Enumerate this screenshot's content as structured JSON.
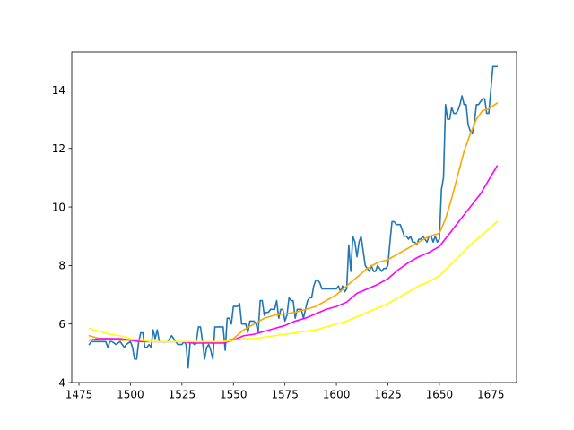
{
  "chart_data": {
    "type": "line",
    "title": "",
    "xlabel": "",
    "ylabel": "",
    "xlim": [
      1471.5,
      1687.5
    ],
    "ylim": [
      4,
      15.3
    ],
    "grid": false,
    "legend": "none",
    "x_ticks": [
      1475,
      1500,
      1525,
      1550,
      1575,
      1600,
      1625,
      1650,
      1675
    ],
    "x_tick_labels": [
      "1475",
      "1500",
      "1525",
      "1550",
      "1575",
      "1600",
      "1625",
      "1650",
      "1675"
    ],
    "y_ticks": [
      4,
      6,
      8,
      10,
      12,
      14
    ],
    "y_tick_labels": [
      "4",
      "6",
      "8",
      "10",
      "12",
      "14"
    ],
    "series": [
      {
        "color": "#1f77b4",
        "x": [
          1480,
          1481,
          1482,
          1484,
          1486,
          1488,
          1489,
          1490,
          1491,
          1493,
          1495,
          1497,
          1498,
          1500,
          1501,
          1502,
          1503,
          1504,
          1505,
          1506,
          1507,
          1508,
          1509,
          1510,
          1511,
          1512,
          1513,
          1514,
          1515,
          1516,
          1518,
          1520,
          1522,
          1523,
          1524,
          1525,
          1526,
          1527,
          1528,
          1529,
          1530,
          1531,
          1532,
          1533,
          1534,
          1535,
          1536,
          1537,
          1538,
          1539,
          1540,
          1541,
          1542,
          1543,
          1545,
          1546,
          1547,
          1548,
          1549,
          1550,
          1551,
          1552,
          1553,
          1554,
          1555,
          1556,
          1557,
          1558,
          1559,
          1560,
          1561,
          1562,
          1563,
          1564,
          1565,
          1566,
          1567,
          1568,
          1569,
          1570,
          1571,
          1572,
          1573,
          1574,
          1575,
          1576,
          1577,
          1578,
          1579,
          1580,
          1581,
          1582,
          1583,
          1584,
          1585,
          1586,
          1587,
          1588,
          1589,
          1590,
          1591,
          1592,
          1593,
          1594,
          1595,
          1596,
          1597,
          1598,
          1599,
          1600,
          1601,
          1602,
          1603,
          1604,
          1605,
          1606,
          1607,
          1608,
          1609,
          1610,
          1611,
          1612,
          1613,
          1614,
          1615,
          1616,
          1617,
          1618,
          1619,
          1620,
          1621,
          1622,
          1623,
          1624,
          1625,
          1626,
          1627,
          1628,
          1629,
          1630,
          1631,
          1632,
          1633,
          1634,
          1635,
          1636,
          1637,
          1638,
          1639,
          1640,
          1641,
          1642,
          1643,
          1644,
          1645,
          1646,
          1647,
          1648,
          1649,
          1650,
          1651,
          1652,
          1653,
          1654,
          1655,
          1656,
          1657,
          1658,
          1659,
          1660,
          1661,
          1662,
          1663,
          1664,
          1665,
          1666,
          1667,
          1668,
          1669,
          1670,
          1671,
          1672,
          1673,
          1674,
          1675,
          1676,
          1677,
          1678
        ],
        "y": [
          5.3,
          5.4,
          5.4,
          5.4,
          5.4,
          5.4,
          5.2,
          5.4,
          5.4,
          5.3,
          5.4,
          5.2,
          5.3,
          5.4,
          5.2,
          4.8,
          4.8,
          5.4,
          5.7,
          5.7,
          5.2,
          5.2,
          5.3,
          5.2,
          5.8,
          5.5,
          5.8,
          5.4,
          5.4,
          5.4,
          5.4,
          5.6,
          5.4,
          5.3,
          5.3,
          5.3,
          5.4,
          5.3,
          4.5,
          5.4,
          5.4,
          5.3,
          5.4,
          5.9,
          5.9,
          5.4,
          4.8,
          5.2,
          5.3,
          5.1,
          4.8,
          5.9,
          5.9,
          5.9,
          5.9,
          5.1,
          6.2,
          6.2,
          6.0,
          6.6,
          6.6,
          6.6,
          6.7,
          6.0,
          6.0,
          6.0,
          5.7,
          6.1,
          6.1,
          6.1,
          6.0,
          5.7,
          6.8,
          6.8,
          6.3,
          6.4,
          6.4,
          6.5,
          6.5,
          6.5,
          6.8,
          6.2,
          6.5,
          6.5,
          6.1,
          6.3,
          6.9,
          6.8,
          6.8,
          6.2,
          6.5,
          6.5,
          6.5,
          6.2,
          6.5,
          6.8,
          6.9,
          6.9,
          7.3,
          7.5,
          7.5,
          7.4,
          7.2,
          7.2,
          7.2,
          7.2,
          7.2,
          7.2,
          7.2,
          7.2,
          7.3,
          7.1,
          7.3,
          7.1,
          7.2,
          8.7,
          7.8,
          9.0,
          8.8,
          8.3,
          8.8,
          9.0,
          8.5,
          8.0,
          7.9,
          7.8,
          8.0,
          7.8,
          7.8,
          8.0,
          7.9,
          7.8,
          7.9,
          7.9,
          8.0,
          8.8,
          9.5,
          9.5,
          9.4,
          9.4,
          9.4,
          9.2,
          9.0,
          9.0,
          8.9,
          9.0,
          8.8,
          8.8,
          8.7,
          8.9,
          8.9,
          9.0,
          8.9,
          8.8,
          9.0,
          9.0,
          8.8,
          9.0,
          8.8,
          8.9,
          10.6,
          11.0,
          13.5,
          13.0,
          13.0,
          13.4,
          13.2,
          13.2,
          13.3,
          13.5,
          13.8,
          13.5,
          13.5,
          12.8,
          12.6,
          12.5,
          12.9,
          13.5,
          13.5,
          13.6,
          13.7,
          13.7,
          13.2,
          13.2,
          14.0,
          14.8,
          14.8,
          14.8
        ],
        "line_width": 1.6
      },
      {
        "color": "#ffa500",
        "x": [
          1480,
          1485,
          1490,
          1495,
          1500,
          1505,
          1510,
          1515,
          1520,
          1525,
          1530,
          1535,
          1540,
          1545,
          1550,
          1555,
          1560,
          1565,
          1570,
          1575,
          1580,
          1585,
          1590,
          1595,
          1600,
          1605,
          1610,
          1615,
          1620,
          1625,
          1630,
          1635,
          1640,
          1645,
          1650,
          1653,
          1656,
          1659,
          1662,
          1665,
          1668,
          1671,
          1674,
          1678
        ],
        "y": [
          5.6,
          5.5,
          5.5,
          5.45,
          5.45,
          5.4,
          5.4,
          5.4,
          5.4,
          5.4,
          5.4,
          5.4,
          5.35,
          5.4,
          5.5,
          5.8,
          6.0,
          6.2,
          6.3,
          6.35,
          6.4,
          6.5,
          6.6,
          6.8,
          7.0,
          7.3,
          7.6,
          7.9,
          8.1,
          8.2,
          8.4,
          8.6,
          8.8,
          9.0,
          9.1,
          9.6,
          10.3,
          11.1,
          11.9,
          12.5,
          13.0,
          13.3,
          13.35,
          13.55
        ],
        "line_width": 1.6
      },
      {
        "color": "#ff00ff",
        "x": [
          1480,
          1485,
          1490,
          1495,
          1500,
          1505,
          1510,
          1515,
          1520,
          1525,
          1530,
          1535,
          1540,
          1545,
          1550,
          1555,
          1560,
          1565,
          1570,
          1575,
          1580,
          1585,
          1590,
          1595,
          1600,
          1605,
          1610,
          1615,
          1620,
          1625,
          1630,
          1635,
          1640,
          1645,
          1650,
          1655,
          1660,
          1665,
          1670,
          1678
        ],
        "y": [
          5.45,
          5.5,
          5.5,
          5.5,
          5.45,
          5.4,
          5.4,
          5.4,
          5.4,
          5.4,
          5.35,
          5.35,
          5.35,
          5.35,
          5.45,
          5.6,
          5.65,
          5.75,
          5.85,
          5.95,
          6.1,
          6.2,
          6.35,
          6.5,
          6.6,
          6.75,
          7.05,
          7.2,
          7.35,
          7.55,
          7.85,
          8.1,
          8.3,
          8.45,
          8.65,
          9.1,
          9.55,
          10.0,
          10.45,
          11.4
        ],
        "line_width": 1.6
      },
      {
        "color": "#ffff00",
        "x": [
          1480,
          1485,
          1490,
          1495,
          1500,
          1505,
          1510,
          1515,
          1520,
          1525,
          1530,
          1535,
          1540,
          1545,
          1550,
          1555,
          1560,
          1565,
          1570,
          1575,
          1580,
          1585,
          1590,
          1595,
          1600,
          1605,
          1610,
          1615,
          1620,
          1625,
          1630,
          1635,
          1640,
          1645,
          1650,
          1655,
          1660,
          1665,
          1670,
          1678
        ],
        "y": [
          5.85,
          5.75,
          5.65,
          5.6,
          5.5,
          5.45,
          5.4,
          5.4,
          5.4,
          5.4,
          5.4,
          5.4,
          5.4,
          5.4,
          5.45,
          5.5,
          5.5,
          5.55,
          5.6,
          5.65,
          5.7,
          5.75,
          5.8,
          5.9,
          6.0,
          6.1,
          6.25,
          6.4,
          6.55,
          6.7,
          6.9,
          7.1,
          7.3,
          7.45,
          7.65,
          8.0,
          8.35,
          8.7,
          9.0,
          9.5
        ],
        "line_width": 1.6
      }
    ]
  }
}
